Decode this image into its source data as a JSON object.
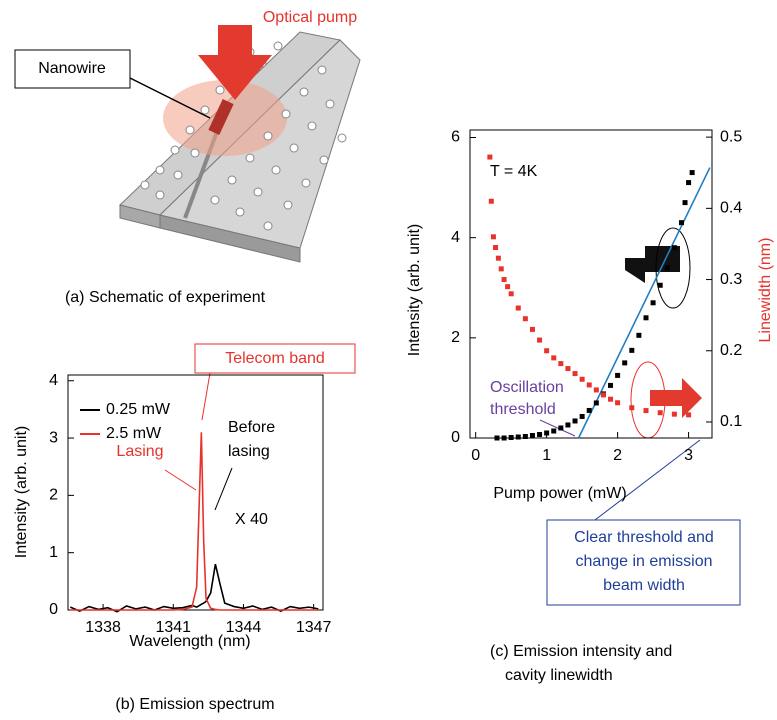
{
  "schematic": {
    "pump_label": "Optical pump",
    "nanowire_label": "Nanowire",
    "caption": "(a) Schematic of experiment"
  },
  "chart_data": [
    {
      "type": "line",
      "caption": "(b) Emission spectrum",
      "x_label": "Wavelength (nm)",
      "y_label": "Intensity (arb. unit)",
      "x": [
        1336.6,
        1337.0,
        1337.4,
        1337.8,
        1338.2,
        1338.6,
        1339.0,
        1339.4,
        1339.8,
        1340.2,
        1340.6,
        1341.0,
        1341.4,
        1341.8,
        1342.0,
        1342.2,
        1342.3,
        1342.4,
        1342.6,
        1342.8,
        1343.0,
        1343.2,
        1343.6,
        1344.0,
        1344.4,
        1344.8,
        1345.2,
        1345.6,
        1346.0,
        1346.4,
        1346.8,
        1347.2
      ],
      "series": [
        {
          "name": "0.25 mW",
          "color": "#000000",
          "values": [
            0.05,
            -0.02,
            0.06,
            0.01,
            0.04,
            -0.03,
            0.07,
            0.02,
            0.05,
            0.0,
            0.06,
            0.03,
            0.04,
            0.08,
            0.05,
            0.1,
            0.12,
            0.15,
            0.3,
            0.8,
            0.45,
            0.12,
            0.06,
            0.03,
            0.07,
            0.01,
            0.05,
            -0.02,
            0.06,
            0.03,
            0.05,
            0.02
          ]
        },
        {
          "name": "2.5 mW",
          "color": "#e8322c",
          "values": [
            0,
            0,
            0,
            0,
            0,
            0,
            0,
            0,
            0,
            0,
            0,
            0,
            0.01,
            0.05,
            0.4,
            3.1,
            1.2,
            0.2,
            0.03,
            0.01,
            0,
            0,
            0,
            0,
            0,
            0,
            0,
            0,
            0,
            0,
            0,
            0
          ]
        }
      ],
      "xlim": [
        1336.5,
        1347.4
      ],
      "xticks": [
        1338,
        1341,
        1344,
        1347
      ],
      "ylim": [
        0,
        4.1
      ],
      "yticks": [
        0,
        1,
        2,
        3,
        4
      ],
      "annotations": {
        "telecom": "Telecom band",
        "lasing": "Lasing",
        "before": [
          "Before",
          "lasing"
        ],
        "scale": "X 40"
      }
    },
    {
      "type": "scatter",
      "caption": [
        "(c) Emission intensity and",
        "cavity linewidth"
      ],
      "x_label": "Pump power (mW)",
      "y_label": "Intensity (arb. unit)",
      "y2_label": "Linewidth (nm)",
      "series": [
        {
          "color": "#000000",
          "x": [
            0.3,
            0.4,
            0.5,
            0.6,
            0.7,
            0.8,
            0.9,
            1.0,
            1.1,
            1.2,
            1.3,
            1.4,
            1.5,
            1.6,
            1.7,
            1.8,
            1.9,
            2.0,
            2.1,
            2.2,
            2.3,
            2.4,
            2.5,
            2.6,
            2.7,
            2.8,
            2.9,
            2.95,
            3.0,
            3.05
          ],
          "values": [
            0,
            0,
            0.01,
            0.02,
            0.03,
            0.05,
            0.07,
            0.1,
            0.14,
            0.2,
            0.26,
            0.34,
            0.43,
            0.55,
            0.7,
            0.88,
            1.05,
            1.25,
            1.5,
            1.75,
            2.05,
            2.4,
            2.7,
            3.05,
            3.4,
            3.8,
            4.3,
            4.7,
            5.1,
            5.3
          ]
        },
        {
          "color": "#e8322c",
          "axis": "y2",
          "x": [
            0.2,
            0.22,
            0.25,
            0.28,
            0.32,
            0.36,
            0.4,
            0.45,
            0.5,
            0.6,
            0.7,
            0.8,
            0.9,
            1.0,
            1.1,
            1.2,
            1.3,
            1.4,
            1.5,
            1.6,
            1.7,
            1.8,
            1.9,
            2.0,
            2.2,
            2.4,
            2.6,
            2.8,
            3.0
          ],
          "values": [
            0.472,
            0.41,
            0.36,
            0.345,
            0.33,
            0.315,
            0.3,
            0.29,
            0.28,
            0.26,
            0.245,
            0.23,
            0.215,
            0.2,
            0.19,
            0.182,
            0.175,
            0.168,
            0.16,
            0.152,
            0.145,
            0.138,
            0.132,
            0.127,
            0.12,
            0.116,
            0.113,
            0.111,
            0.11
          ]
        }
      ],
      "fit_line": {
        "color": "#1f7fc4",
        "x": [
          1.45,
          3.3
        ],
        "values": [
          0,
          5.4
        ]
      },
      "xlim": [
        -0.08,
        3.33
      ],
      "xticks": [
        0,
        1,
        2,
        3
      ],
      "ylim": [
        0,
        6.15
      ],
      "yticks": [
        0,
        2,
        4,
        6
      ],
      "y2lim": [
        0.0775,
        0.51
      ],
      "y2ticks": [
        0.1,
        0.2,
        0.3,
        0.4,
        0.5
      ],
      "y2_color": "#e8322c",
      "annotations": {
        "temp": "T = 4K",
        "threshold": [
          "Oscillation",
          "threshold"
        ],
        "note": [
          "Clear threshold and",
          "change in emission",
          "beam width"
        ]
      }
    }
  ]
}
